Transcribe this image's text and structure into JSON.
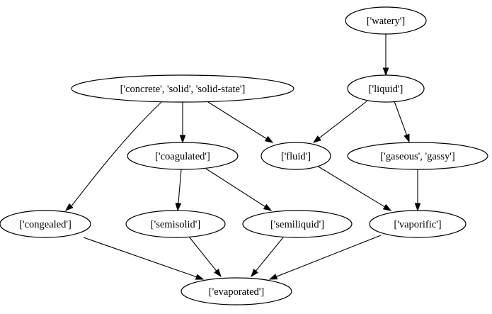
{
  "nodes": [
    {
      "id": "watery",
      "label": "['watery']"
    },
    {
      "id": "concrete",
      "label": "['concrete', 'solid', 'solid-state']"
    },
    {
      "id": "liquid",
      "label": "['liquid']"
    },
    {
      "id": "coagulated",
      "label": "['coagulated']"
    },
    {
      "id": "fluid",
      "label": "['fluid']"
    },
    {
      "id": "gaseous",
      "label": "['gaseous', 'gassy']"
    },
    {
      "id": "congealed",
      "label": "['congealed']"
    },
    {
      "id": "semisolid",
      "label": "['semisolid']"
    },
    {
      "id": "semiliquid",
      "label": "['semiliquid']"
    },
    {
      "id": "vaporific",
      "label": "['vaporific']"
    },
    {
      "id": "evaporated",
      "label": "['evaporated']"
    }
  ],
  "edges": [
    {
      "from": "watery",
      "to": "liquid"
    },
    {
      "from": "concrete",
      "to": "coagulated"
    },
    {
      "from": "concrete",
      "to": "fluid"
    },
    {
      "from": "concrete",
      "to": "congealed"
    },
    {
      "from": "liquid",
      "to": "fluid"
    },
    {
      "from": "liquid",
      "to": "gaseous"
    },
    {
      "from": "coagulated",
      "to": "semisolid"
    },
    {
      "from": "coagulated",
      "to": "semiliquid"
    },
    {
      "from": "fluid",
      "to": "vaporific"
    },
    {
      "from": "gaseous",
      "to": "vaporific"
    },
    {
      "from": "congealed",
      "to": "evaporated"
    },
    {
      "from": "semisolid",
      "to": "evaporated"
    },
    {
      "from": "semiliquid",
      "to": "evaporated"
    },
    {
      "from": "vaporific",
      "to": "evaporated"
    }
  ]
}
